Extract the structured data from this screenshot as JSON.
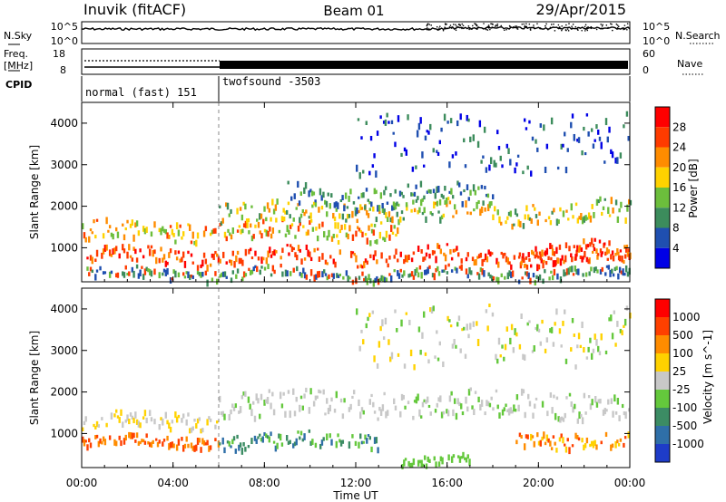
{
  "header": {
    "station": "Inuvik (fitACF)",
    "beam": "Beam 01",
    "date": "29/Apr/2015"
  },
  "chart_data": [
    {
      "type": "line",
      "panel": "noise",
      "left_label": "N.Sky",
      "right_label": "N.Search",
      "left_ticks": [
        "10^5",
        "10^0"
      ],
      "right_ticks": [
        "10^5",
        "10^0"
      ]
    },
    {
      "type": "line",
      "panel": "freq-nave",
      "left_label_1": "Freq.",
      "left_label_2": "[MHz]",
      "right_label": "Nave",
      "left_ticks": [
        "18",
        "8"
      ],
      "right_ticks": [
        "60",
        "0"
      ]
    },
    {
      "type": "table",
      "panel": "cpid",
      "label": "CPID",
      "segments": [
        {
          "name": "normal (fast) 151",
          "start_hour": 0,
          "end_hour": 6
        },
        {
          "name": "twofsound -3503",
          "start_hour": 6,
          "end_hour": 24
        }
      ]
    },
    {
      "type": "heatmap",
      "panel": "power",
      "ylabel": "Slant Range [km]",
      "ylim": [
        180,
        4500
      ],
      "yticks": [
        1000,
        2000,
        3000,
        4000
      ],
      "colorbar_label": "Power [dB]",
      "colorbar_ticks": [
        4,
        8,
        12,
        16,
        20,
        24,
        28
      ],
      "colorbar_colors": [
        "#0000e6",
        "#1f4fb0",
        "#3c8c5c",
        "#6cbe3c",
        "#ffd200",
        "#ff8c00",
        "#ff3b00",
        "#ff0000"
      ]
    },
    {
      "type": "heatmap",
      "panel": "velocity",
      "ylabel": "Slant Range [km]",
      "ylim": [
        180,
        4500
      ],
      "yticks": [
        1000,
        2000,
        3000,
        4000
      ],
      "colorbar_label": "Velocity [m s^-1]",
      "colorbar_ticks": [
        1000,
        500,
        100,
        25,
        -25,
        -100,
        -500,
        -1000
      ],
      "colorbar_colors": [
        "#1e3cc8",
        "#2f6fa8",
        "#3c8c64",
        "#64c83c",
        "#c8c8c8",
        "#ffd200",
        "#ff8c00",
        "#ff4000",
        "#ff0000"
      ]
    }
  ],
  "xaxis": {
    "label": "Time UT",
    "ticks": [
      "00:00",
      "04:00",
      "08:00",
      "12:00",
      "16:00",
      "20:00",
      "00:00"
    ]
  }
}
